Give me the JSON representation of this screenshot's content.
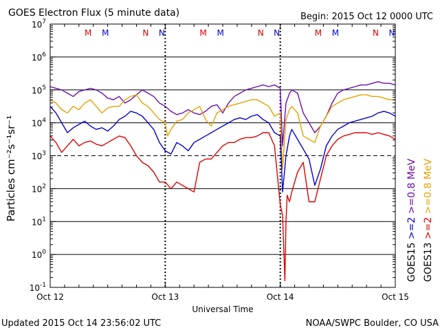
{
  "chart_data": {
    "type": "line",
    "title": "GOES Electron Flux (5 minute data)",
    "begin_label": "Begin: 2015 Oct 12 0000 UTC",
    "xlabel": "Universal Time",
    "ylabel": "Particles cm⁻²s⁻¹sr⁻¹",
    "x_tick_labels": [
      "Oct 12",
      "Oct 13",
      "Oct 14",
      "Oct 15"
    ],
    "xlim_days": [
      0,
      3
    ],
    "ylim_log10": [
      -1,
      7
    ],
    "y_tick_labels": [
      {
        "base": "10",
        "exp": "7"
      },
      {
        "base": "10",
        "exp": "6"
      },
      {
        "base": "10",
        "exp": "5"
      },
      {
        "base": "10",
        "exp": "4"
      },
      {
        "base": "10",
        "exp": "3"
      },
      {
        "base": "10",
        "exp": "2"
      },
      {
        "base": "10",
        "exp": "1"
      },
      {
        "base": "10",
        "exp": "0"
      },
      {
        "base": "10",
        "exp": "-1"
      }
    ],
    "threshold_log10": 3,
    "markers": [
      {
        "label": "M",
        "day": 0.33,
        "color": "#dd0000"
      },
      {
        "label": "M",
        "day": 0.48,
        "color": "#0000cc"
      },
      {
        "label": "N",
        "day": 0.83,
        "color": "#dd0000"
      },
      {
        "label": "N",
        "day": 0.97,
        "color": "#0000cc"
      },
      {
        "label": "M",
        "day": 1.33,
        "color": "#dd0000"
      },
      {
        "label": "M",
        "day": 1.48,
        "color": "#0000cc"
      },
      {
        "label": "N",
        "day": 1.83,
        "color": "#dd0000"
      },
      {
        "label": "N",
        "day": 1.97,
        "color": "#0000cc"
      },
      {
        "label": "M",
        "day": 2.33,
        "color": "#dd0000"
      },
      {
        "label": "M",
        "day": 2.48,
        "color": "#0000cc"
      },
      {
        "label": "N",
        "day": 2.83,
        "color": "#dd0000"
      },
      {
        "label": "N",
        "day": 2.97,
        "color": "#0000cc"
      }
    ],
    "legend": {
      "goes15": "GOES15",
      "goes13": "GOES13",
      "g15_entries": [
        {
          "text": ">=2",
          "color": "#0000cc"
        },
        {
          "text": ">=0.8",
          "color": "#6a0dad"
        },
        {
          "text": "MeV",
          "color": "#6a0dad"
        }
      ],
      "g13_entries": [
        {
          "text": ">=2",
          "color": "#dd0000"
        },
        {
          "text": ">=0.8",
          "color": "#e6a000"
        },
        {
          "text": "MeV",
          "color": "#e6a000"
        }
      ]
    },
    "series": [
      {
        "name": "GOES15 >=0.8 MeV",
        "color": "#6a0dad",
        "x": [
          0,
          0.05,
          0.1,
          0.15,
          0.2,
          0.25,
          0.3,
          0.35,
          0.4,
          0.45,
          0.5,
          0.55,
          0.6,
          0.65,
          0.7,
          0.75,
          0.8,
          0.85,
          0.9,
          0.95,
          1.0,
          1.05,
          1.1,
          1.15,
          1.2,
          1.25,
          1.3,
          1.35,
          1.4,
          1.45,
          1.5,
          1.55,
          1.6,
          1.65,
          1.7,
          1.75,
          1.8,
          1.85,
          1.9,
          1.95,
          2.0,
          2.02,
          2.05,
          2.08,
          2.1,
          2.15,
          2.2,
          2.25,
          2.3,
          2.35,
          2.4,
          2.45,
          2.5,
          2.55,
          2.6,
          2.65,
          2.7,
          2.75,
          2.8,
          2.85,
          2.9,
          2.95,
          3.0
        ],
        "y": [
          5.1,
          5.05,
          5.0,
          4.9,
          4.8,
          4.95,
          5.0,
          5.05,
          5.0,
          4.9,
          4.75,
          4.7,
          4.8,
          4.6,
          4.7,
          4.85,
          5.0,
          4.9,
          4.8,
          4.6,
          4.5,
          4.35,
          4.25,
          4.3,
          4.4,
          4.3,
          4.25,
          4.35,
          4.5,
          4.55,
          4.3,
          4.6,
          4.8,
          4.9,
          5.0,
          5.05,
          5.1,
          5.15,
          5.1,
          5.15,
          5.05,
          3.3,
          4.6,
          4.9,
          5.0,
          4.9,
          4.3,
          4.0,
          3.7,
          3.9,
          4.2,
          4.6,
          4.9,
          5.0,
          5.05,
          5.1,
          5.15,
          5.15,
          5.2,
          5.25,
          5.2,
          5.2,
          5.15
        ]
      },
      {
        "name": "GOES13 >=0.8 MeV",
        "color": "#e6a000",
        "x": [
          0,
          0.05,
          0.1,
          0.15,
          0.2,
          0.25,
          0.3,
          0.35,
          0.4,
          0.45,
          0.5,
          0.55,
          0.6,
          0.65,
          0.7,
          0.75,
          0.8,
          0.85,
          0.9,
          0.95,
          1.0,
          1.02,
          1.05,
          1.1,
          1.15,
          1.2,
          1.25,
          1.3,
          1.35,
          1.4,
          1.45,
          1.5,
          1.55,
          1.6,
          1.65,
          1.7,
          1.75,
          1.8,
          1.85,
          1.9,
          1.95,
          2.0,
          2.02,
          2.05,
          2.08,
          2.1,
          2.15,
          2.2,
          2.25,
          2.3,
          2.35,
          2.4,
          2.45,
          2.5,
          2.55,
          2.6,
          2.65,
          2.7,
          2.75,
          2.8,
          2.85,
          2.9,
          2.95,
          3.0
        ],
        "y": [
          4.7,
          4.6,
          4.4,
          4.3,
          4.5,
          4.4,
          4.6,
          4.7,
          4.5,
          4.3,
          4.45,
          4.5,
          4.5,
          4.7,
          4.8,
          4.85,
          4.6,
          4.5,
          4.3,
          4.1,
          4.0,
          3.6,
          3.8,
          4.05,
          4.1,
          4.3,
          4.4,
          4.5,
          4.1,
          3.9,
          4.3,
          4.4,
          4.5,
          4.55,
          4.6,
          4.65,
          4.7,
          4.7,
          4.6,
          4.5,
          4.2,
          4.3,
          2.6,
          4.1,
          4.4,
          4.5,
          4.3,
          3.6,
          3.5,
          3.4,
          3.9,
          4.2,
          4.5,
          4.6,
          4.7,
          4.75,
          4.8,
          4.85,
          4.85,
          4.8,
          4.8,
          4.75,
          4.7,
          4.7
        ]
      },
      {
        "name": "GOES15 >=2 MeV",
        "color": "#0000cc",
        "x": [
          0,
          0.05,
          0.1,
          0.15,
          0.2,
          0.25,
          0.3,
          0.35,
          0.4,
          0.45,
          0.5,
          0.55,
          0.6,
          0.65,
          0.7,
          0.75,
          0.8,
          0.85,
          0.9,
          0.95,
          1.0,
          1.05,
          1.1,
          1.15,
          1.2,
          1.25,
          1.3,
          1.35,
          1.4,
          1.45,
          1.5,
          1.55,
          1.6,
          1.65,
          1.7,
          1.75,
          1.8,
          1.85,
          1.9,
          1.95,
          2.0,
          2.02,
          2.05,
          2.08,
          2.1,
          2.15,
          2.2,
          2.25,
          2.3,
          2.35,
          2.4,
          2.45,
          2.5,
          2.55,
          2.6,
          2.65,
          2.7,
          2.75,
          2.8,
          2.85,
          2.9,
          2.95,
          3.0
        ],
        "y": [
          4.5,
          4.3,
          4.0,
          3.7,
          3.85,
          3.95,
          4.05,
          3.9,
          3.8,
          3.85,
          3.75,
          3.9,
          4.1,
          4.2,
          4.35,
          4.3,
          4.2,
          4.0,
          3.8,
          3.4,
          3.15,
          3.05,
          3.4,
          3.3,
          3.15,
          3.4,
          3.5,
          3.6,
          3.7,
          3.8,
          3.9,
          4.0,
          4.1,
          4.15,
          4.1,
          4.2,
          4.25,
          4.1,
          4.0,
          3.7,
          3.6,
          1.9,
          3.0,
          3.6,
          3.8,
          3.5,
          3.2,
          2.9,
          2.1,
          2.6,
          3.3,
          3.6,
          3.8,
          3.9,
          4.0,
          4.05,
          4.1,
          4.15,
          4.2,
          4.3,
          4.35,
          4.3,
          4.2
        ]
      },
      {
        "name": "GOES13 >=2 MeV",
        "color": "#dd0000",
        "x": [
          0,
          0.05,
          0.1,
          0.15,
          0.2,
          0.25,
          0.3,
          0.35,
          0.4,
          0.45,
          0.5,
          0.55,
          0.6,
          0.65,
          0.7,
          0.75,
          0.8,
          0.85,
          0.9,
          0.95,
          1.0,
          1.05,
          1.1,
          1.15,
          1.2,
          1.25,
          1.3,
          1.35,
          1.4,
          1.45,
          1.5,
          1.55,
          1.6,
          1.65,
          1.7,
          1.75,
          1.8,
          1.85,
          1.9,
          1.95,
          2.0,
          2.02,
          2.04,
          2.05,
          2.06,
          2.08,
          2.1,
          2.15,
          2.2,
          2.25,
          2.3,
          2.35,
          2.4,
          2.45,
          2.5,
          2.55,
          2.6,
          2.65,
          2.7,
          2.75,
          2.8,
          2.85,
          2.9,
          2.95,
          3.0
        ],
        "y": [
          3.6,
          3.4,
          3.1,
          3.3,
          3.5,
          3.3,
          3.4,
          3.45,
          3.35,
          3.3,
          3.4,
          3.5,
          3.6,
          3.55,
          3.3,
          3.0,
          2.8,
          2.7,
          2.5,
          2.2,
          2.2,
          2.0,
          2.2,
          2.1,
          2.0,
          1.9,
          2.8,
          2.9,
          2.9,
          3.1,
          3.3,
          3.4,
          3.4,
          3.5,
          3.55,
          3.55,
          3.6,
          3.7,
          3.7,
          3.3,
          1.5,
          1.2,
          -0.8,
          1.0,
          1.8,
          1.6,
          1.9,
          2.5,
          2.8,
          1.6,
          1.6,
          2.3,
          3.0,
          3.3,
          3.5,
          3.6,
          3.65,
          3.7,
          3.7,
          3.7,
          3.65,
          3.7,
          3.65,
          3.6,
          3.5
        ]
      }
    ]
  },
  "footer": {
    "updated": "Updated 2015 Oct 14 23:56:02 UTC",
    "credit": "NOAA/SWPC Boulder, CO USA"
  }
}
